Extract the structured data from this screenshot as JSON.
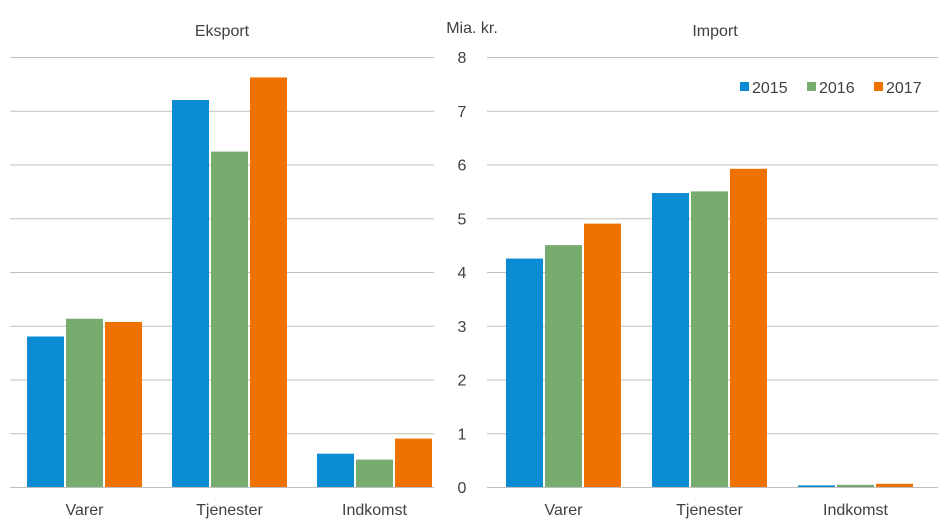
{
  "chart_data": {
    "type": "bar",
    "unit": "Mia. kr.",
    "ylim": [
      0,
      8
    ],
    "yticks": [
      0,
      1,
      2,
      3,
      4,
      5,
      6,
      7,
      8
    ],
    "grid": true,
    "legend": {
      "placement": "top-right",
      "entries": [
        "2015",
        "2016",
        "2017"
      ]
    },
    "colors": {
      "2015": "#0a8bd4",
      "2016": "#78ab6e",
      "2017": "#ef7200"
    },
    "panels": [
      {
        "title": "Eksport",
        "categories": [
          "Varer",
          "Tjenester",
          "Indkomst"
        ],
        "series": [
          {
            "name": "2015",
            "values": [
              2.8,
              7.2,
              0.62
            ]
          },
          {
            "name": "2016",
            "values": [
              3.13,
              6.24,
              0.51
            ]
          },
          {
            "name": "2017",
            "values": [
              3.07,
              7.62,
              0.9
            ]
          }
        ]
      },
      {
        "title": "Import",
        "categories": [
          "Varer",
          "Tjenester",
          "Indkomst"
        ],
        "series": [
          {
            "name": "2015",
            "values": [
              4.25,
              5.47,
              0.03
            ]
          },
          {
            "name": "2016",
            "values": [
              4.5,
              5.5,
              0.04
            ]
          },
          {
            "name": "2017",
            "values": [
              4.9,
              5.92,
              0.06
            ]
          }
        ]
      }
    ]
  }
}
